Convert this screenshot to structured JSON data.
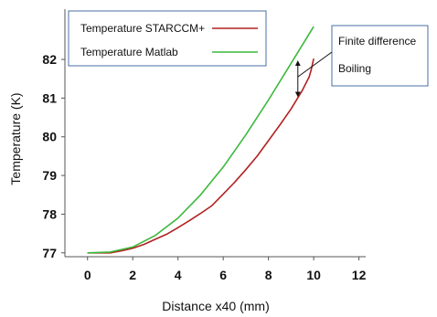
{
  "chart_data": {
    "type": "line",
    "title": "",
    "xlabel": "Distance x40 (mm)",
    "ylabel": "Temperature (K)",
    "xlim": [
      -1,
      12.3
    ],
    "ylim": [
      76.9,
      83.3
    ],
    "xticks": [
      0,
      2,
      4,
      6,
      8,
      10,
      12
    ],
    "yticks": [
      77,
      78,
      79,
      80,
      81,
      82
    ],
    "grid": false,
    "legend_position": "top-left",
    "series": [
      {
        "name": "Temperature STARCCM+",
        "color": "#b22222",
        "x": [
          0,
          1,
          1.5,
          2,
          2.5,
          3,
          3.5,
          4,
          4.5,
          5,
          5.5,
          6,
          6.5,
          7,
          7.5,
          8,
          8.5,
          9,
          9.5,
          9.8,
          9.9,
          10.0
        ],
        "y": [
          77.0,
          77.0,
          77.05,
          77.12,
          77.22,
          77.35,
          77.48,
          77.65,
          77.83,
          78.02,
          78.22,
          78.52,
          78.82,
          79.15,
          79.5,
          79.9,
          80.3,
          80.72,
          81.2,
          81.55,
          81.75,
          82.02
        ]
      },
      {
        "name": "Temperature Matlab",
        "color": "#3cb83c",
        "x": [
          0,
          1,
          2,
          3,
          4,
          5,
          6,
          7,
          8,
          9,
          10
        ],
        "y": [
          77.0,
          77.02,
          77.15,
          77.45,
          77.9,
          78.5,
          79.22,
          80.05,
          80.95,
          81.9,
          82.85
        ]
      }
    ],
    "annotations": [
      {
        "text": "Finite difference",
        "color": "#4a6fa5"
      },
      {
        "text": "Boiling",
        "color": "#4a6fa5"
      }
    ]
  }
}
